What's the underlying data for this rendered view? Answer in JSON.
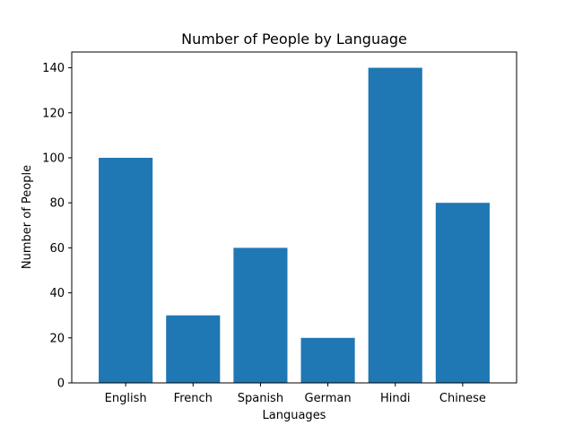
{
  "chart_data": {
    "type": "bar",
    "title": "Number of People by Language",
    "xlabel": "Languages",
    "ylabel": "Number of People",
    "categories": [
      "English",
      "French",
      "Spanish",
      "German",
      "Hindi",
      "Chinese"
    ],
    "values": [
      100,
      30,
      60,
      20,
      140,
      80
    ],
    "ylim": [
      0,
      147
    ],
    "yticks": [
      0,
      20,
      40,
      60,
      80,
      100,
      120,
      140
    ],
    "grid": false,
    "bar_color": "#1f77b4"
  }
}
